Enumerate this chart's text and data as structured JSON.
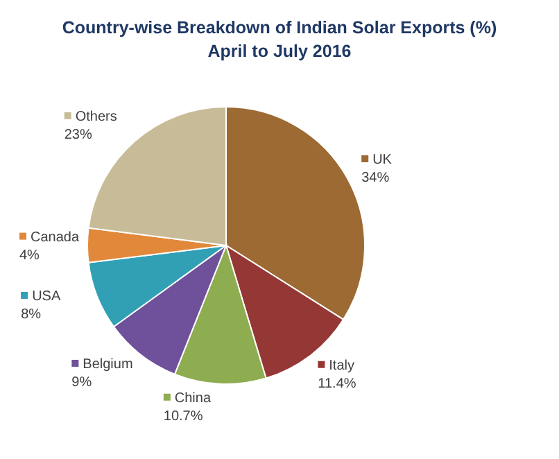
{
  "chart_data": {
    "type": "pie",
    "title": "Country-wise Breakdown of Indian Solar Exports  (%)\nApril to July 2016",
    "categories": [
      "UK",
      "Italy",
      "China",
      "Belgium",
      "USA",
      "Canada",
      "Others"
    ],
    "values": [
      34,
      11.4,
      10.7,
      9,
      8,
      4,
      23
    ],
    "value_labels": [
      "34%",
      "11.4%",
      "10.7%",
      "9%",
      "8%",
      "4%",
      "23%"
    ],
    "colors": [
      "#9c6a32",
      "#953735",
      "#8eac50",
      "#6f509b",
      "#31a0b5",
      "#e2883a",
      "#c8bb97"
    ],
    "legend": "left"
  }
}
